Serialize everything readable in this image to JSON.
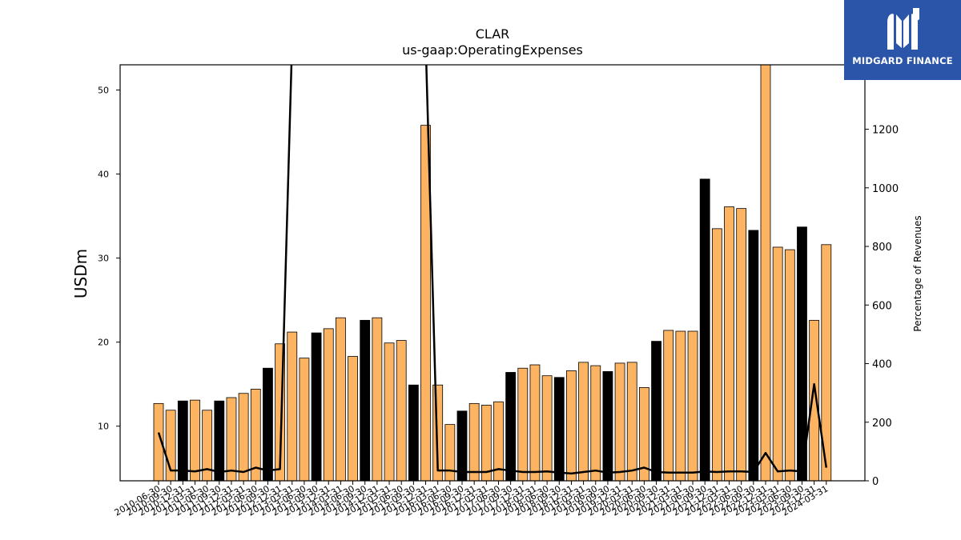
{
  "chart_data": {
    "type": "bar",
    "title": "CLAR",
    "subtitle": "us-gaap:OperatingExpenses",
    "ylabel": "USDm",
    "y2label": "Percentage of Revenues",
    "ylim": [
      3.5,
      53
    ],
    "y2lim": [
      0,
      1420
    ],
    "yticks": [
      10,
      20,
      30,
      40,
      50
    ],
    "y2ticks": [
      0,
      200,
      400,
      600,
      800,
      1000,
      1200
    ],
    "categories": [
      "2010-06-30",
      "2010-09-30",
      "2010-12-31",
      "2011-03-31",
      "2011-06-30",
      "2011-09-30",
      "2011-12-31",
      "2012-03-31",
      "2012-06-30",
      "2012-09-30",
      "2012-12-31",
      "2013-03-31",
      "2013-06-30",
      "2013-09-30",
      "2013-12-31",
      "2014-03-31",
      "2014-06-30",
      "2014-09-30",
      "2014-12-31",
      "2015-03-31",
      "2015-06-30",
      "2015-09-30",
      "2015-12-31",
      "2016-03-31",
      "2016-06-30",
      "2016-09-30",
      "2016-12-31",
      "2017-03-31",
      "2017-06-30",
      "2017-09-30",
      "2017-12-31",
      "2018-03-31",
      "2018-06-30",
      "2018-09-30",
      "2018-12-31",
      "2019-03-31",
      "2019-06-30",
      "2019-09-30",
      "2019-12-31",
      "2020-03-31",
      "2020-06-30",
      "2020-09-30",
      "2020-12-31",
      "2021-03-31",
      "2021-06-30",
      "2021-09-30",
      "2021-12-31",
      "2022-03-31",
      "2022-06-30",
      "2022-09-30",
      "2022-12-31",
      "2023-03-31",
      "2023-06-30",
      "2023-09-30",
      "2023-12-31",
      "2024-03-31"
    ],
    "series": [
      {
        "type": "bar",
        "axis": "left",
        "values": [
          12.7,
          11.9,
          13.0,
          13.1,
          11.9,
          13.0,
          13.4,
          13.9,
          14.4,
          16.9,
          19.8,
          21.2,
          18.1,
          21.1,
          21.6,
          22.9,
          18.3,
          22.6,
          22.9,
          19.9,
          20.2,
          14.9,
          45.8,
          14.9,
          10.2,
          11.8,
          12.7,
          12.5,
          12.9,
          16.4,
          16.9,
          17.3,
          16.0,
          15.8,
          16.6,
          17.6,
          17.2,
          16.5,
          17.5,
          17.6,
          14.6,
          20.1,
          21.4,
          21.3,
          21.3,
          39.4,
          33.5,
          36.1,
          35.9,
          33.3,
          53.0,
          31.3,
          31.0,
          33.7,
          22.6,
          31.6
        ],
        "highlighted": [
          2,
          5,
          9,
          13,
          17,
          21,
          25,
          29,
          33,
          37,
          41,
          45,
          49,
          53
        ]
      },
      {
        "type": "line",
        "axis": "right",
        "values": [
          165,
          35,
          35,
          32,
          40,
          30,
          35,
          30,
          45,
          35,
          40,
          1500,
          1500,
          1500,
          1500,
          1500,
          1500,
          1500,
          1500,
          1500,
          1500,
          1500,
          1500,
          35,
          35,
          30,
          30,
          30,
          40,
          35,
          30,
          30,
          32,
          28,
          25,
          30,
          35,
          28,
          30,
          35,
          45,
          30,
          28,
          28,
          28,
          32,
          30,
          32,
          32,
          30,
          95,
          32,
          35,
          32,
          330,
          45
        ],
        "comment": ""
      }
    ],
    "colors": {
      "bar": "#fdb462",
      "bar_highlight": "#000000",
      "line": "#000000"
    }
  },
  "logo": {
    "text": "MIDGARD FINANCE"
  }
}
